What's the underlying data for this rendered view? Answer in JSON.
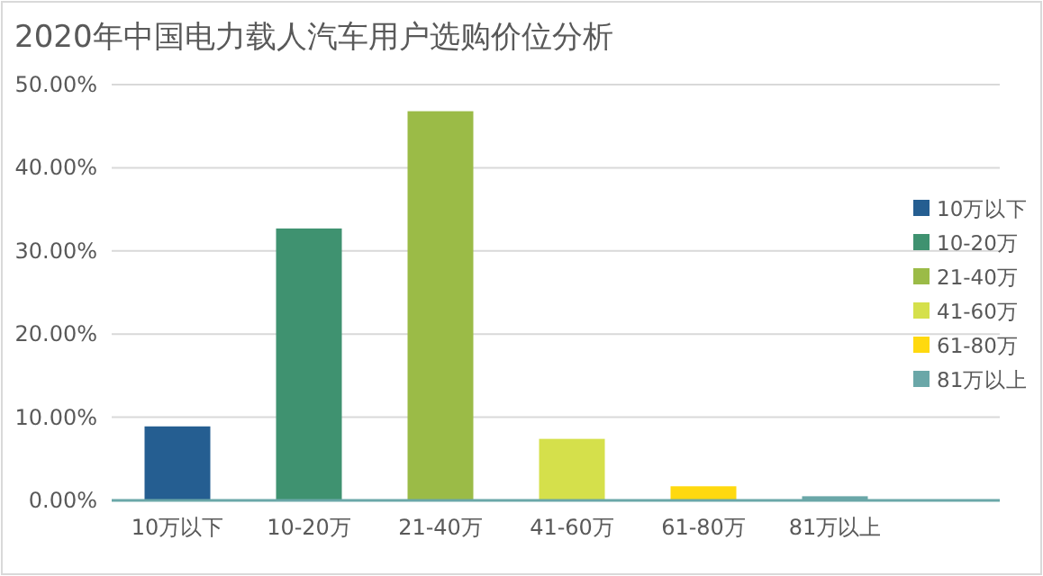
{
  "chart_data": {
    "type": "bar",
    "title": "2020年中国电力载人汽车用户选购价位分析",
    "categories": [
      "10万以下",
      "10-20万",
      "21-40万",
      "41-60万",
      "61-80万",
      "81万以上"
    ],
    "series": [
      {
        "name": "10万以下",
        "color": "#255e91",
        "values": [
          8.9,
          null,
          null,
          null,
          null,
          null
        ]
      },
      {
        "name": "10-20万",
        "color": "#3f9270",
        "values": [
          null,
          32.7,
          null,
          null,
          null,
          null
        ]
      },
      {
        "name": "21-40万",
        "color": "#9bbb47",
        "values": [
          null,
          null,
          46.8,
          null,
          null,
          null
        ]
      },
      {
        "name": "41-60万",
        "color": "#d5e04b",
        "values": [
          null,
          null,
          null,
          7.4,
          null,
          null
        ]
      },
      {
        "name": "61-80万",
        "color": "#ffd90f",
        "values": [
          null,
          null,
          null,
          null,
          1.7,
          null
        ]
      },
      {
        "name": "81万以上",
        "color": "#6aa7a8",
        "values": [
          null,
          null,
          null,
          null,
          null,
          0.5
        ]
      }
    ],
    "ylim": [
      0,
      50
    ],
    "yticks": [
      {
        "value": 0,
        "label": "0.00%"
      },
      {
        "value": 10,
        "label": "10.00%"
      },
      {
        "value": 20,
        "label": "20.00%"
      },
      {
        "value": 30,
        "label": "30.00%"
      },
      {
        "value": 40,
        "label": "40.00%"
      },
      {
        "value": 50,
        "label": "50.00%"
      }
    ],
    "grid": "y",
    "legend": "right"
  }
}
